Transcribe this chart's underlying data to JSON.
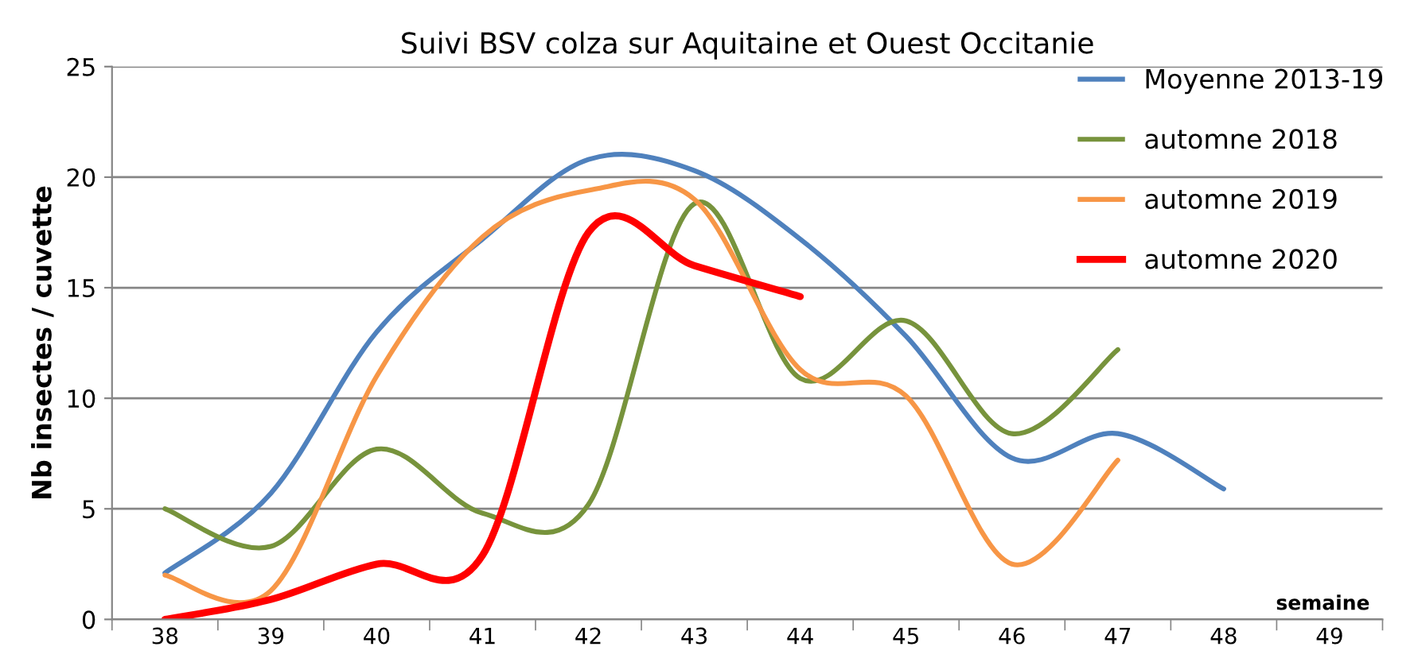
{
  "chart_data": {
    "type": "line",
    "title": "Suivi BSV colza sur Aquitaine et Ouest Occitanie",
    "ylabel": "Nb insectes / cuvette",
    "xlabel": "semaine",
    "categories": [
      "38",
      "39",
      "40",
      "41",
      "42",
      "43",
      "44",
      "45",
      "46",
      "47",
      "48",
      "49"
    ],
    "series": [
      {
        "name": "Moyenne 2013-19",
        "color": "#4f81bd",
        "values": [
          2.1,
          5.7,
          13,
          17.2,
          20.8,
          20.3,
          17.2,
          12.8,
          7.3,
          8.4,
          5.9,
          null
        ]
      },
      {
        "name": "automne 2018",
        "color": "#77933c",
        "values": [
          5,
          3.3,
          7.7,
          4.8,
          5.2,
          18.8,
          10.9,
          13.5,
          8.4,
          12.2,
          null,
          null
        ]
      },
      {
        "name": "automne 2019",
        "color": "#f79646",
        "values": [
          2,
          1.3,
          11,
          17.3,
          19.4,
          19,
          11.3,
          10.1,
          2.5,
          7.2,
          null,
          null
        ]
      },
      {
        "name": "automne 2020",
        "color": "#ff0000",
        "values": [
          0,
          0.9,
          2.5,
          2.9,
          17.5,
          16,
          14.6,
          null,
          null,
          null,
          null,
          null
        ]
      }
    ],
    "ylim": [
      0,
      25
    ],
    "yticks": [
      0,
      5,
      10,
      15,
      20,
      25
    ],
    "grid": "y",
    "legend": "top right",
    "marker": "none",
    "line_style": "solid"
  }
}
